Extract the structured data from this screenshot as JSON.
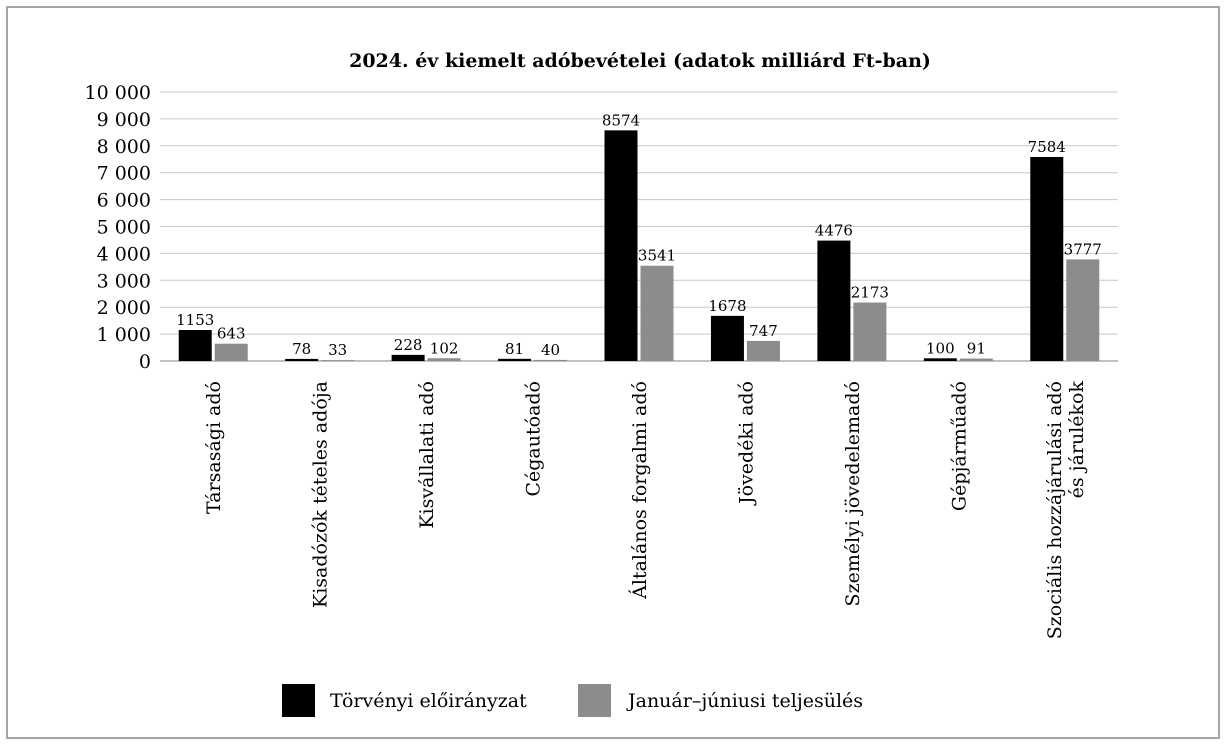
{
  "chart_data": {
    "type": "bar",
    "title": "2024. év kiemelt adóbevételei (adatok milliárd Ft-ban)",
    "xlabel": "",
    "ylabel": "",
    "ylim": [
      0,
      10000
    ],
    "yticks": [
      0,
      1000,
      2000,
      3000,
      4000,
      5000,
      6000,
      7000,
      8000,
      9000,
      10000
    ],
    "ytick_labels": [
      "0",
      "1 000",
      "2 000",
      "3 000",
      "4 000",
      "5 000",
      "6 000",
      "7 000",
      "8 000",
      "9 000",
      "10 000"
    ],
    "grid": true,
    "legend_position": "bottom",
    "categories": [
      [
        "Társasági adó"
      ],
      [
        "Kisadózók tételes adója"
      ],
      [
        "Kisvállalati adó"
      ],
      [
        "Cégautóadó"
      ],
      [
        "Általános forgalmi adó"
      ],
      [
        "Jövedéki adó"
      ],
      [
        "Személyi jövedelemadó"
      ],
      [
        "Gépjárműadó"
      ],
      [
        "Szociális hozzájárulási adó",
        "és járulékok"
      ]
    ],
    "series": [
      {
        "name": "Törvényi előirányzat",
        "color": "#000000",
        "values": [
          1153,
          78,
          228,
          81,
          8574,
          1678,
          4476,
          100,
          7584
        ],
        "labels": [
          "1153",
          "78",
          "228",
          "81",
          "8574",
          "1678",
          "4476",
          "100",
          "7584"
        ]
      },
      {
        "name": "Január–júniusi teljesülés",
        "color": "#8c8c8c",
        "values": [
          643,
          33,
          102,
          40,
          3541,
          747,
          2173,
          91,
          3777
        ],
        "labels": [
          "643",
          "33",
          "102",
          "40",
          "3541",
          "747",
          "2173",
          "91",
          "3777"
        ]
      }
    ]
  }
}
